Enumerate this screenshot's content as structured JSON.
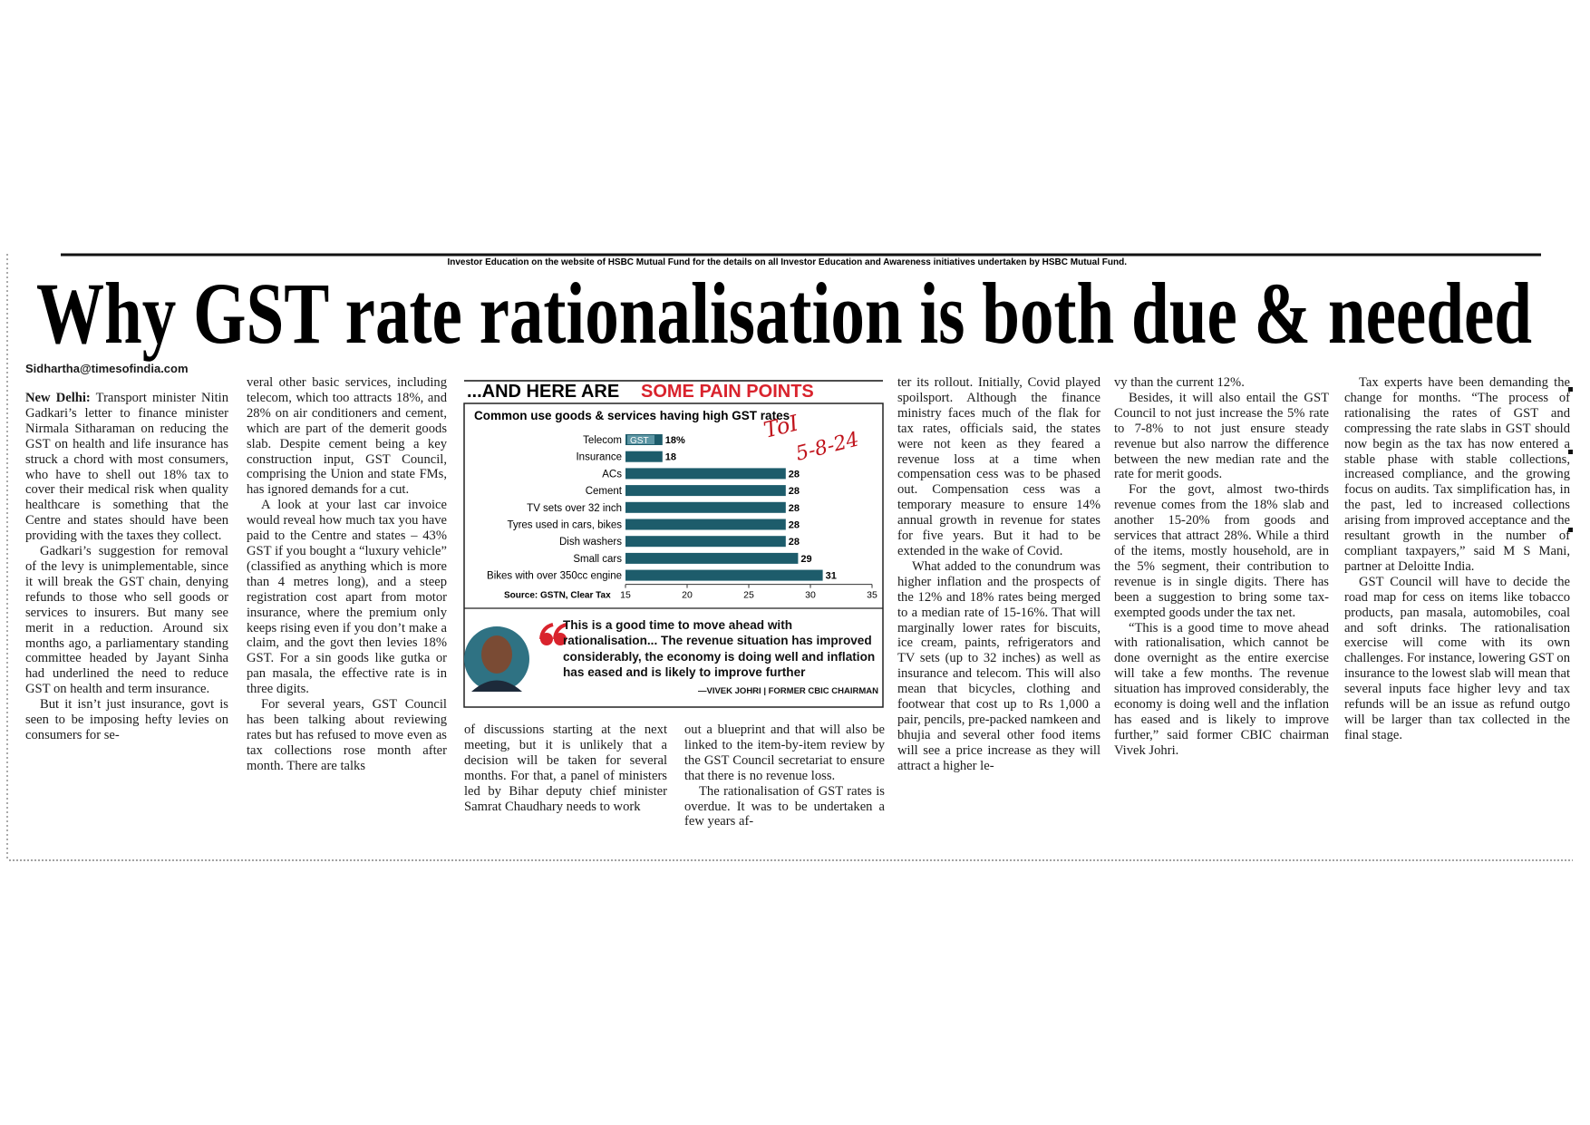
{
  "header_strip": "Investor Education on the website of HSBC Mutual Fund for the details on all Investor Education and Awareness initiatives undertaken by HSBC Mutual Fund.",
  "headline": "Why GST rate rationalisation is both due & needed",
  "byline": "Sidhartha@timesofindia.com",
  "article": {
    "dateline": "New Delhi:",
    "columns": [
      [
        "Transport minister Nitin Gadkari’s letter to finance minister Nirmala Sitharaman on reducing the GST on health and life insurance has struck a chord with most consumers, who have to shell out 18% tax to cover their medical risk when quality healthcare is something that the Centre and states should have been providing with the taxes they collect.",
        "Gadkari’s suggestion for removal of the levy is unimplementable, since it will break the GST chain, denying refunds to those who sell goods or services to insurers. But many see merit in a reduction. Around six months ago, a parliamentary standing committee headed by Jayant Sinha had underlined the need to reduce GST on health and term insurance.",
        "But it isn’t just insurance, govt is seen to be imposing hefty levies on consumers for se-"
      ],
      [
        "veral other basic services, including telecom, which too attracts 18%, and 28% on air conditioners and cement, which are part of the demerit goods slab. Despite cement being a key construction input, GST Council, comprising the Union and state FMs, has ignored demands for a cut.",
        "A look at your last car invoice would reveal how much tax you have paid to the Centre and states – 43% GST if you bought a “luxury vehicle” (classified as anything which is more than 4 metres long), and a steep registration cost apart from motor insurance, where the premium only keeps rising even if you don’t make a claim, and the govt then levies 18% GST. For a sin goods like gutka or pan masala, the effective rate is in three digits.",
        "For several years, GST Council has been talking about reviewing rates but has refused to move even as tax collections rose month after month. There are talks"
      ],
      [
        "of discussions starting at the next meeting, but it is unlikely that a decision will be taken for several months. For that, a panel of ministers led by Bihar deputy chief minister Samrat Chaudhary needs to work"
      ],
      [
        "out a blueprint and that will also be linked to the item-by-item review by the GST Council secretariat to ensure that there is no revenue loss.",
        "The rationalisation of GST rates is overdue. It was to be undertaken a few years af-"
      ],
      [
        "ter its rollout. Initially, Covid played spoilsport. Although the finance ministry faces much of the flak for tax rates, officials said, the states were not keen as they feared a revenue loss at a time when compensation cess was to be phased out. Compensation cess was a temporary measure to ensure 14% annual growth in revenue for states for five years. But it had to be extended in the wake of Covid.",
        "What added to the conundrum was higher inflation and the prospects of the 12% and 18% rates being merged to a median rate of 15-16%. That will marginally lower rates for biscuits, ice cream, paints, refrigerators and TV sets (up to 32 inches) as well as insurance and telecom. This will also mean that bicycles, clothing and footwear that cost up to Rs 1,000 a pair, pencils, pre-packed namkeen and bhujia and several other food items will see a price increase as they will attract a higher le-"
      ],
      [
        "vy than the current 12%.",
        "Besides, it will also entail the GST Council to not just increase the 5% rate to 7-8% to not just ensure steady revenue but also narrow the difference between the new median rate and the rate for merit goods.",
        "For the govt, almost two-thirds revenue comes from the 18% slab and another 15-20% from goods and services that attract 28%. While a third of the items, mostly household, are in the 5% segment, their contribution to revenue is in single digits. There has been a suggestion to bring some tax-exempted goods under the tax net.",
        "“This is a good time to move ahead with rationalisation, which cannot be done overnight as the entire exercise will take a few months. The revenue situation has improved considerably, the economy is doing well and the inflation has eased and is likely to improve further,” said former CBIC chairman Vivek Johri."
      ],
      [
        "Tax experts have been demanding the change for months. “The process of rationalising the rates of GST and compressing the rate slabs in GST should now begin as the tax has now entered a stable phase with stable collections, increased compliance, and the growing focus on audits. Tax simplification has, in the past, led to increased collections arising from improved acceptance and the resultant growth in the number of compliant taxpayers,” said M S Mani, partner at Deloitte India.",
        "GST Council will have to decide the road map for cess on items like tobacco products, pan masala, automobiles, coal and soft drinks. The rationalisation exercise will come with its own challenges. For instance, lowering GST on insurance to the lowest slab will mean that several inputs face higher levy and tax refunds will be an issue as refund outgo will be larger than tax collected in the final stage."
      ]
    ]
  },
  "chart_data": {
    "type": "bar",
    "orientation": "horizontal",
    "title": [
      "...AND HERE ARE",
      "SOME PAIN POINTS"
    ],
    "subtitle": "Common use goods & services having high GST rates",
    "annotation": "GST",
    "categories": [
      "Telecom",
      "Insurance",
      "ACs",
      "Cement",
      "TV sets over 32 inch",
      "Tyres used in cars, bikes",
      "Dish washers",
      "Small cars",
      "Bikes with over 350cc engine"
    ],
    "values": [
      18,
      18,
      28,
      28,
      28,
      28,
      28,
      29,
      31
    ],
    "value_labels": [
      "18%",
      "18",
      "28",
      "28",
      "28",
      "28",
      "28",
      "29",
      "31"
    ],
    "color": "#1d5c6b",
    "xlim": [
      15,
      35
    ],
    "xticks": [
      15,
      20,
      25,
      30,
      35
    ],
    "source": "Source: GSTN, Clear Tax"
  },
  "quote": {
    "text": "This is a good time to move ahead with rationalisation... The revenue situation has improved considerably, the economy is doing well and inflation has eased and is likely to improve further",
    "attribution": "—VIVEK JOHRI | FORMER CBIC CHAIRMAN"
  },
  "handwritten_note": [
    "ToI",
    "5-8-24"
  ]
}
